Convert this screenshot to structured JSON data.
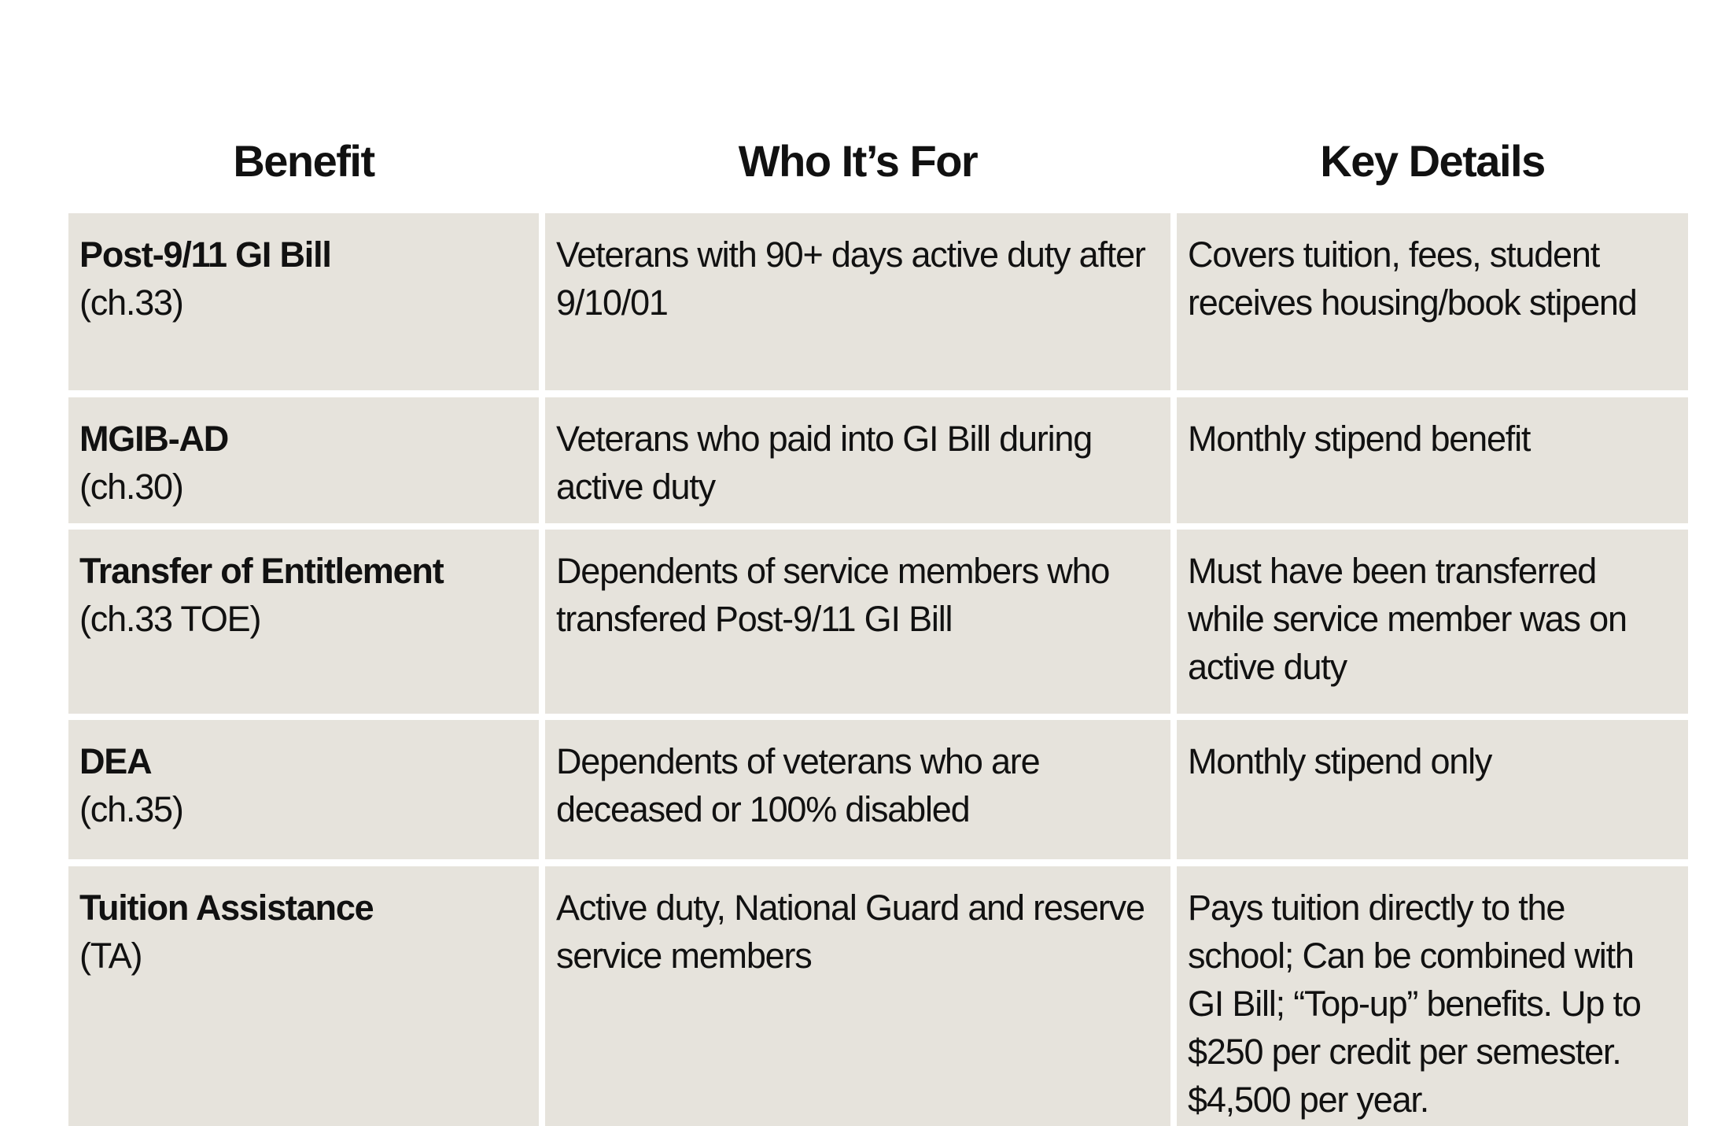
{
  "headers": [
    "Benefit",
    "Who It’s For",
    "Key Details"
  ],
  "rows": [
    {
      "benefit": "Post-9/11 GI Bill",
      "chapter": "(ch.33)",
      "who": "Veterans with 90+ days active duty after 9/10/01",
      "details": "Covers tuition, fees, student receives housing/book stipend"
    },
    {
      "benefit": "MGIB-AD",
      "chapter": "(ch.30)",
      "who": "Veterans who paid into GI Bill during active duty",
      "details": "Monthly stipend benefit"
    },
    {
      "benefit": "Transfer of Entitlement",
      "chapter": "(ch.33 TOE)",
      "who": "Dependents of service members who transfered Post-9/11 GI Bill",
      "details": "Must have been transferred while service member was on active duty"
    },
    {
      "benefit": "DEA",
      "chapter": "(ch.35)",
      "who": "Dependents of veterans who are deceased or 100% disabled",
      "details": "Monthly stipend only"
    },
    {
      "benefit": "Tuition Assistance",
      "chapter": "(TA)",
      "who": "Active duty, National Guard and reserve service members",
      "details": "Pays tuition directly to the school; Can be combined with GI Bill; “Top-up” benefits. Up to $250 per credit per semester. $4,500 per year."
    }
  ],
  "colors": {
    "cell_background": "#e6e3dc"
  }
}
